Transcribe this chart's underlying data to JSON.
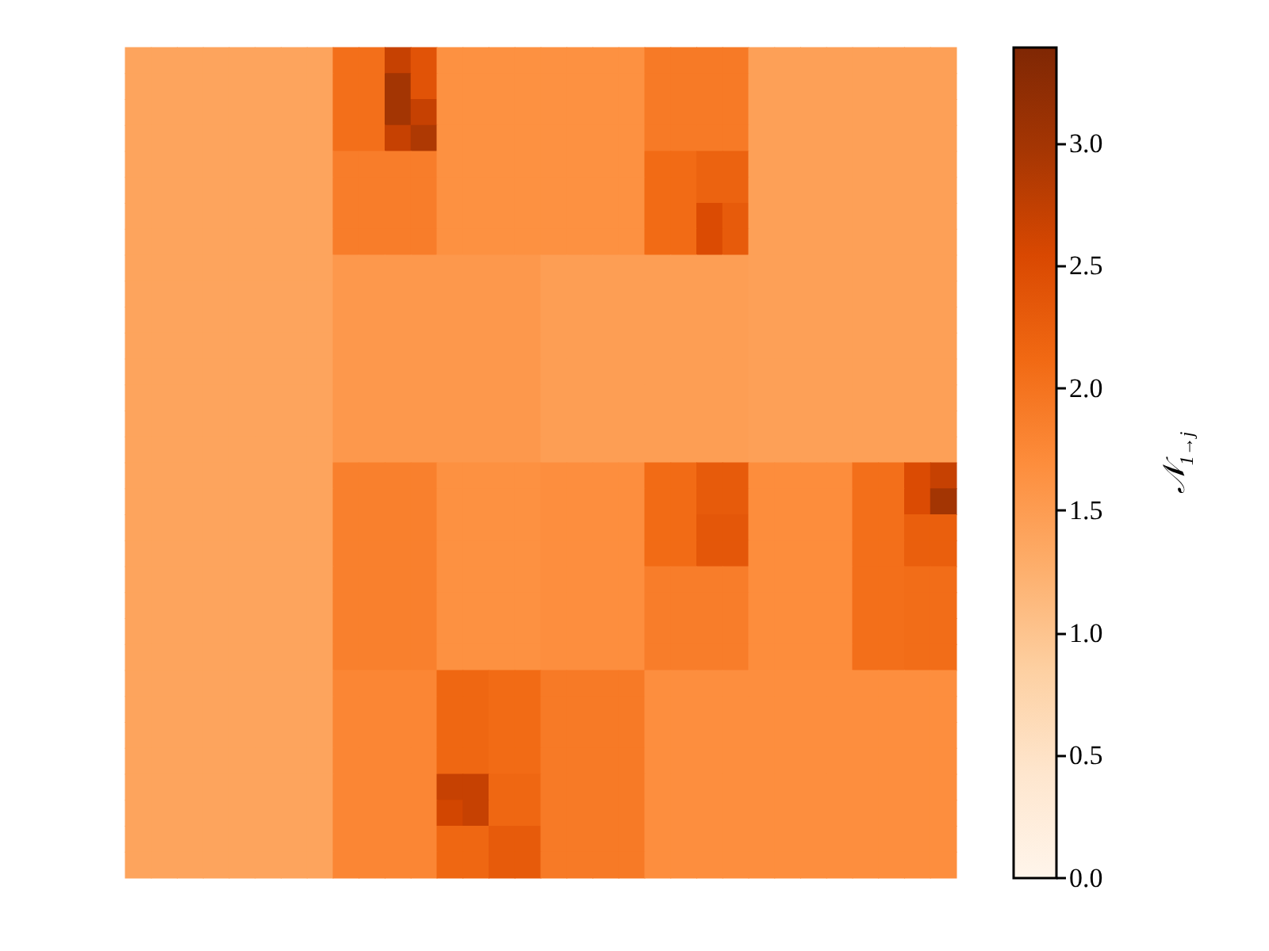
{
  "chart_data": {
    "type": "heatmap",
    "clabel": "𝒩$_{1→j}$",
    "categories": [
      null,
      null,
      null,
      null,
      null,
      null,
      null,
      null,
      null,
      null,
      null,
      null,
      null,
      null,
      null,
      null,
      null,
      null,
      null,
      null,
      null,
      null,
      null,
      null,
      null,
      null,
      null,
      null,
      null,
      null,
      null,
      null
    ],
    "y_categories": [
      null,
      null,
      null,
      null,
      null,
      null,
      null,
      null,
      null,
      null,
      null,
      null,
      null,
      null,
      null,
      null,
      null,
      null,
      null,
      null,
      null,
      null,
      null,
      null,
      null,
      null,
      null,
      null,
      null,
      null,
      null,
      null
    ],
    "clim": [
      0,
      3.39
    ],
    "cticks": [
      {
        "value": 0,
        "label": "0.0"
      },
      {
        "value": 0.5,
        "label": "0.5"
      },
      {
        "value": 1,
        "label": "1.0"
      },
      {
        "value": 1.5,
        "label": "1.5"
      },
      {
        "value": 2,
        "label": "2.0"
      },
      {
        "value": 2.5,
        "label": "2.5"
      },
      {
        "value": 3,
        "label": "3.0"
      }
    ],
    "cells": [
      [
        1.4,
        1.4,
        1.4,
        1.4,
        1.4,
        1.4,
        1.4,
        1.4,
        2.05,
        2.05,
        2.7,
        2.4,
        1.65,
        1.65,
        1.65,
        1.65,
        1.65,
        1.65,
        1.65,
        1.65,
        1.92,
        1.92,
        1.92,
        1.92,
        1.45,
        1.45,
        1.45,
        1.45,
        1.45,
        1.45,
        1.45,
        1.45
      ],
      [
        1.4,
        1.4,
        1.4,
        1.4,
        1.4,
        1.4,
        1.4,
        1.4,
        2.05,
        2.05,
        3.0,
        2.4,
        1.65,
        1.65,
        1.65,
        1.65,
        1.65,
        1.65,
        1.65,
        1.65,
        1.92,
        1.92,
        1.92,
        1.92,
        1.45,
        1.45,
        1.45,
        1.45,
        1.45,
        1.45,
        1.45,
        1.45
      ],
      [
        1.4,
        1.4,
        1.4,
        1.4,
        1.4,
        1.4,
        1.4,
        1.4,
        2.05,
        2.05,
        3.0,
        2.7,
        1.65,
        1.65,
        1.65,
        1.65,
        1.65,
        1.65,
        1.65,
        1.65,
        1.92,
        1.92,
        1.92,
        1.92,
        1.45,
        1.45,
        1.45,
        1.45,
        1.45,
        1.45,
        1.45,
        1.45
      ],
      [
        1.4,
        1.4,
        1.4,
        1.4,
        1.4,
        1.4,
        1.4,
        1.4,
        2.05,
        2.05,
        2.7,
        2.9,
        1.65,
        1.65,
        1.65,
        1.65,
        1.65,
        1.65,
        1.65,
        1.65,
        1.92,
        1.92,
        1.92,
        1.92,
        1.45,
        1.45,
        1.45,
        1.45,
        1.45,
        1.45,
        1.45,
        1.45
      ],
      [
        1.4,
        1.4,
        1.4,
        1.4,
        1.4,
        1.4,
        1.4,
        1.4,
        1.88,
        1.88,
        1.88,
        1.88,
        1.65,
        1.65,
        1.65,
        1.65,
        1.65,
        1.65,
        1.65,
        1.65,
        2.1,
        2.1,
        2.2,
        2.2,
        1.45,
        1.45,
        1.45,
        1.45,
        1.45,
        1.45,
        1.45,
        1.45
      ],
      [
        1.4,
        1.4,
        1.4,
        1.4,
        1.4,
        1.4,
        1.4,
        1.4,
        1.88,
        1.88,
        1.88,
        1.88,
        1.65,
        1.65,
        1.65,
        1.65,
        1.65,
        1.65,
        1.65,
        1.65,
        2.1,
        2.1,
        2.2,
        2.2,
        1.45,
        1.45,
        1.45,
        1.45,
        1.45,
        1.45,
        1.45,
        1.45
      ],
      [
        1.4,
        1.4,
        1.4,
        1.4,
        1.4,
        1.4,
        1.4,
        1.4,
        1.88,
        1.88,
        1.88,
        1.88,
        1.65,
        1.65,
        1.65,
        1.65,
        1.65,
        1.65,
        1.65,
        1.65,
        2.1,
        2.1,
        2.5,
        2.3,
        1.45,
        1.45,
        1.45,
        1.45,
        1.45,
        1.45,
        1.45,
        1.45
      ],
      [
        1.4,
        1.4,
        1.4,
        1.4,
        1.4,
        1.4,
        1.4,
        1.4,
        1.88,
        1.88,
        1.88,
        1.88,
        1.65,
        1.65,
        1.65,
        1.65,
        1.65,
        1.65,
        1.65,
        1.65,
        2.1,
        2.1,
        2.5,
        2.3,
        1.45,
        1.45,
        1.45,
        1.45,
        1.45,
        1.45,
        1.45,
        1.45
      ],
      [
        1.4,
        1.4,
        1.4,
        1.4,
        1.4,
        1.4,
        1.4,
        1.4,
        1.55,
        1.55,
        1.55,
        1.55,
        1.55,
        1.55,
        1.55,
        1.55,
        1.48,
        1.48,
        1.48,
        1.48,
        1.48,
        1.48,
        1.48,
        1.48,
        1.45,
        1.45,
        1.45,
        1.45,
        1.45,
        1.45,
        1.45,
        1.45
      ],
      [
        1.4,
        1.4,
        1.4,
        1.4,
        1.4,
        1.4,
        1.4,
        1.4,
        1.55,
        1.55,
        1.55,
        1.55,
        1.55,
        1.55,
        1.55,
        1.55,
        1.48,
        1.48,
        1.48,
        1.48,
        1.48,
        1.48,
        1.48,
        1.48,
        1.45,
        1.45,
        1.45,
        1.45,
        1.45,
        1.45,
        1.45,
        1.45
      ],
      [
        1.4,
        1.4,
        1.4,
        1.4,
        1.4,
        1.4,
        1.4,
        1.4,
        1.55,
        1.55,
        1.55,
        1.55,
        1.55,
        1.55,
        1.55,
        1.55,
        1.48,
        1.48,
        1.48,
        1.48,
        1.48,
        1.48,
        1.48,
        1.48,
        1.45,
        1.45,
        1.45,
        1.45,
        1.45,
        1.45,
        1.45,
        1.45
      ],
      [
        1.4,
        1.4,
        1.4,
        1.4,
        1.4,
        1.4,
        1.4,
        1.4,
        1.55,
        1.55,
        1.55,
        1.55,
        1.55,
        1.55,
        1.55,
        1.55,
        1.48,
        1.48,
        1.48,
        1.48,
        1.48,
        1.48,
        1.48,
        1.48,
        1.45,
        1.45,
        1.45,
        1.45,
        1.45,
        1.45,
        1.45,
        1.45
      ],
      [
        1.4,
        1.4,
        1.4,
        1.4,
        1.4,
        1.4,
        1.4,
        1.4,
        1.55,
        1.55,
        1.55,
        1.55,
        1.55,
        1.55,
        1.55,
        1.55,
        1.48,
        1.48,
        1.48,
        1.48,
        1.48,
        1.48,
        1.48,
        1.48,
        1.45,
        1.45,
        1.45,
        1.45,
        1.45,
        1.45,
        1.45,
        1.45
      ],
      [
        1.4,
        1.4,
        1.4,
        1.4,
        1.4,
        1.4,
        1.4,
        1.4,
        1.55,
        1.55,
        1.55,
        1.55,
        1.55,
        1.55,
        1.55,
        1.55,
        1.48,
        1.48,
        1.48,
        1.48,
        1.48,
        1.48,
        1.48,
        1.48,
        1.45,
        1.45,
        1.45,
        1.45,
        1.45,
        1.45,
        1.45,
        1.45
      ],
      [
        1.4,
        1.4,
        1.4,
        1.4,
        1.4,
        1.4,
        1.4,
        1.4,
        1.55,
        1.55,
        1.55,
        1.55,
        1.55,
        1.55,
        1.55,
        1.55,
        1.48,
        1.48,
        1.48,
        1.48,
        1.48,
        1.48,
        1.48,
        1.48,
        1.45,
        1.45,
        1.45,
        1.45,
        1.45,
        1.45,
        1.45,
        1.45
      ],
      [
        1.4,
        1.4,
        1.4,
        1.4,
        1.4,
        1.4,
        1.4,
        1.4,
        1.55,
        1.55,
        1.55,
        1.55,
        1.55,
        1.55,
        1.55,
        1.55,
        1.48,
        1.48,
        1.48,
        1.48,
        1.48,
        1.48,
        1.48,
        1.48,
        1.45,
        1.45,
        1.45,
        1.45,
        1.45,
        1.45,
        1.45,
        1.45
      ],
      [
        1.4,
        1.4,
        1.4,
        1.4,
        1.4,
        1.4,
        1.4,
        1.4,
        1.85,
        1.85,
        1.85,
        1.85,
        1.65,
        1.65,
        1.65,
        1.65,
        1.68,
        1.68,
        1.68,
        1.68,
        2.1,
        2.1,
        2.3,
        2.3,
        1.7,
        1.7,
        1.7,
        1.7,
        2.05,
        2.05,
        2.5,
        2.7
      ],
      [
        1.4,
        1.4,
        1.4,
        1.4,
        1.4,
        1.4,
        1.4,
        1.4,
        1.85,
        1.85,
        1.85,
        1.85,
        1.65,
        1.65,
        1.65,
        1.65,
        1.68,
        1.68,
        1.68,
        1.68,
        2.1,
        2.1,
        2.3,
        2.3,
        1.7,
        1.7,
        1.7,
        1.7,
        2.05,
        2.05,
        2.5,
        3.0
      ],
      [
        1.4,
        1.4,
        1.4,
        1.4,
        1.4,
        1.4,
        1.4,
        1.4,
        1.85,
        1.85,
        1.85,
        1.85,
        1.65,
        1.65,
        1.65,
        1.65,
        1.68,
        1.68,
        1.68,
        1.68,
        2.1,
        2.1,
        2.35,
        2.35,
        1.7,
        1.7,
        1.7,
        1.7,
        2.05,
        2.05,
        2.25,
        2.25
      ],
      [
        1.4,
        1.4,
        1.4,
        1.4,
        1.4,
        1.4,
        1.4,
        1.4,
        1.85,
        1.85,
        1.85,
        1.85,
        1.65,
        1.65,
        1.65,
        1.65,
        1.68,
        1.68,
        1.68,
        1.68,
        2.1,
        2.1,
        2.35,
        2.35,
        1.7,
        1.7,
        1.7,
        1.7,
        2.05,
        2.05,
        2.25,
        2.25
      ],
      [
        1.4,
        1.4,
        1.4,
        1.4,
        1.4,
        1.4,
        1.4,
        1.4,
        1.85,
        1.85,
        1.85,
        1.85,
        1.65,
        1.65,
        1.65,
        1.65,
        1.68,
        1.68,
        1.68,
        1.68,
        1.88,
        1.88,
        1.88,
        1.88,
        1.7,
        1.7,
        1.7,
        1.7,
        2.05,
        2.05,
        2.07,
        2.07
      ],
      [
        1.4,
        1.4,
        1.4,
        1.4,
        1.4,
        1.4,
        1.4,
        1.4,
        1.85,
        1.85,
        1.85,
        1.85,
        1.65,
        1.65,
        1.65,
        1.65,
        1.68,
        1.68,
        1.68,
        1.68,
        1.88,
        1.88,
        1.88,
        1.88,
        1.7,
        1.7,
        1.7,
        1.7,
        2.05,
        2.05,
        2.07,
        2.07
      ],
      [
        1.4,
        1.4,
        1.4,
        1.4,
        1.4,
        1.4,
        1.4,
        1.4,
        1.85,
        1.85,
        1.85,
        1.85,
        1.65,
        1.65,
        1.65,
        1.65,
        1.68,
        1.68,
        1.68,
        1.68,
        1.88,
        1.88,
        1.88,
        1.88,
        1.7,
        1.7,
        1.7,
        1.7,
        2.05,
        2.05,
        2.07,
        2.07
      ],
      [
        1.4,
        1.4,
        1.4,
        1.4,
        1.4,
        1.4,
        1.4,
        1.4,
        1.85,
        1.85,
        1.85,
        1.85,
        1.65,
        1.65,
        1.65,
        1.65,
        1.68,
        1.68,
        1.68,
        1.68,
        1.88,
        1.88,
        1.88,
        1.88,
        1.7,
        1.7,
        1.7,
        1.7,
        2.05,
        2.05,
        2.07,
        2.07
      ],
      [
        1.4,
        1.4,
        1.4,
        1.4,
        1.4,
        1.4,
        1.4,
        1.4,
        1.78,
        1.78,
        1.78,
        1.78,
        2.15,
        2.15,
        2.1,
        2.1,
        1.92,
        1.92,
        1.92,
        1.92,
        1.68,
        1.68,
        1.68,
        1.68,
        1.68,
        1.68,
        1.68,
        1.68,
        1.68,
        1.68,
        1.68,
        1.68
      ],
      [
        1.4,
        1.4,
        1.4,
        1.4,
        1.4,
        1.4,
        1.4,
        1.4,
        1.78,
        1.78,
        1.78,
        1.78,
        2.15,
        2.15,
        2.1,
        2.1,
        1.92,
        1.92,
        1.92,
        1.92,
        1.68,
        1.68,
        1.68,
        1.68,
        1.68,
        1.68,
        1.68,
        1.68,
        1.68,
        1.68,
        1.68,
        1.68
      ],
      [
        1.4,
        1.4,
        1.4,
        1.4,
        1.4,
        1.4,
        1.4,
        1.4,
        1.78,
        1.78,
        1.78,
        1.78,
        2.15,
        2.15,
        2.1,
        2.1,
        1.92,
        1.92,
        1.92,
        1.92,
        1.68,
        1.68,
        1.68,
        1.68,
        1.68,
        1.68,
        1.68,
        1.68,
        1.68,
        1.68,
        1.68,
        1.68
      ],
      [
        1.4,
        1.4,
        1.4,
        1.4,
        1.4,
        1.4,
        1.4,
        1.4,
        1.78,
        1.78,
        1.78,
        1.78,
        2.15,
        2.15,
        2.1,
        2.1,
        1.92,
        1.92,
        1.92,
        1.92,
        1.68,
        1.68,
        1.68,
        1.68,
        1.68,
        1.68,
        1.68,
        1.68,
        1.68,
        1.68,
        1.68,
        1.68
      ],
      [
        1.4,
        1.4,
        1.4,
        1.4,
        1.4,
        1.4,
        1.4,
        1.4,
        1.78,
        1.78,
        1.78,
        1.78,
        2.7,
        2.7,
        2.15,
        2.15,
        1.92,
        1.92,
        1.92,
        1.92,
        1.68,
        1.68,
        1.68,
        1.68,
        1.68,
        1.68,
        1.68,
        1.68,
        1.68,
        1.68,
        1.68,
        1.68
      ],
      [
        1.4,
        1.4,
        1.4,
        1.4,
        1.4,
        1.4,
        1.4,
        1.4,
        1.78,
        1.78,
        1.78,
        1.78,
        2.6,
        2.7,
        2.15,
        2.15,
        1.92,
        1.92,
        1.92,
        1.92,
        1.68,
        1.68,
        1.68,
        1.68,
        1.68,
        1.68,
        1.68,
        1.68,
        1.68,
        1.68,
        1.68,
        1.68
      ],
      [
        1.4,
        1.4,
        1.4,
        1.4,
        1.4,
        1.4,
        1.4,
        1.4,
        1.78,
        1.78,
        1.78,
        1.78,
        2.15,
        2.15,
        2.3,
        2.3,
        1.92,
        1.92,
        1.92,
        1.92,
        1.68,
        1.68,
        1.68,
        1.68,
        1.68,
        1.68,
        1.68,
        1.68,
        1.68,
        1.68,
        1.68,
        1.68
      ],
      [
        1.4,
        1.4,
        1.4,
        1.4,
        1.4,
        1.4,
        1.4,
        1.4,
        1.78,
        1.78,
        1.78,
        1.78,
        2.15,
        2.15,
        2.3,
        2.3,
        1.92,
        1.92,
        1.92,
        1.92,
        1.68,
        1.68,
        1.68,
        1.68,
        1.68,
        1.68,
        1.68,
        1.68,
        1.68,
        1.68,
        1.68,
        1.68
      ]
    ]
  }
}
